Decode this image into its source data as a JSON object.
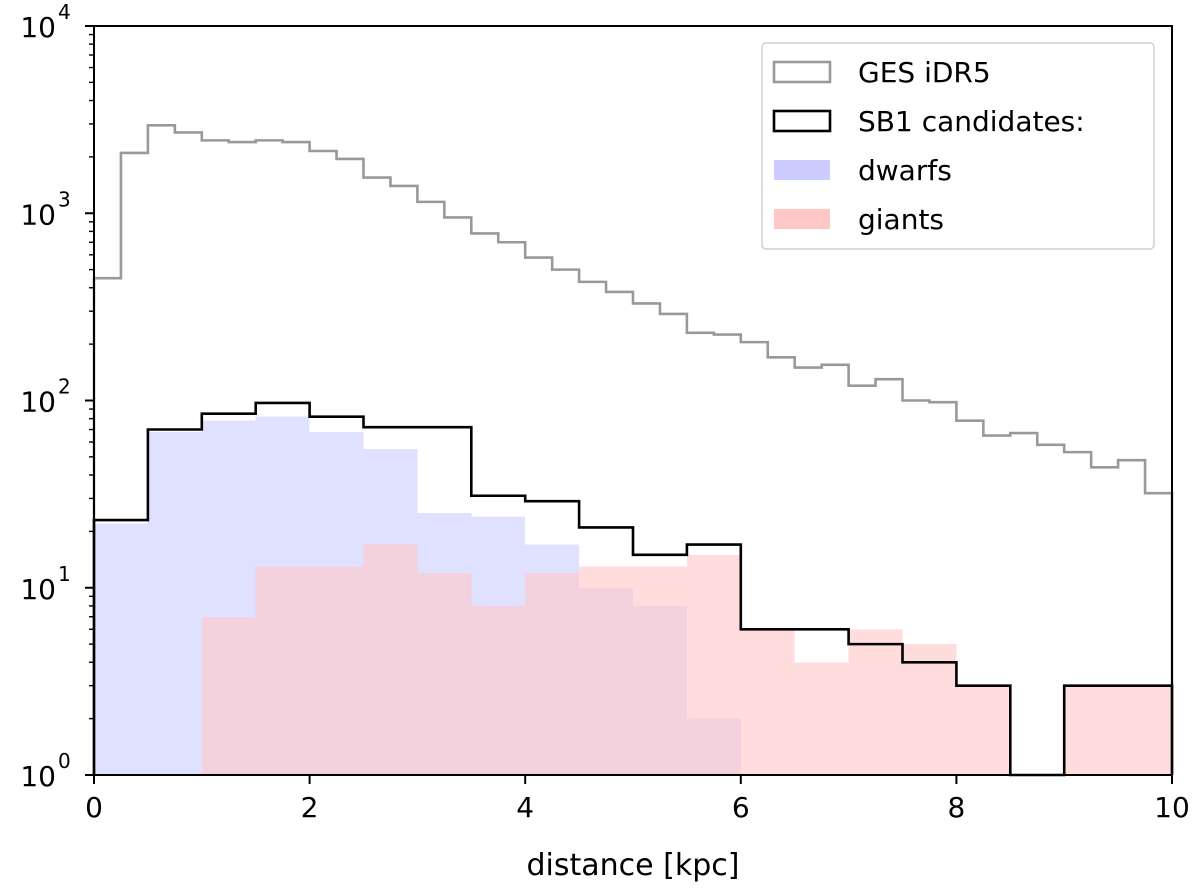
{
  "chart_data": {
    "type": "histogram",
    "xlabel": "distance [kpc]",
    "ylabel": "",
    "xlim": [
      0,
      10
    ],
    "ylim": [
      1,
      10000
    ],
    "yscale": "log",
    "x_ticks": [
      0,
      2,
      4,
      6,
      8,
      10
    ],
    "y_ticks": [
      {
        "value": 1,
        "base": "10",
        "exp": "0"
      },
      {
        "value": 10,
        "base": "10",
        "exp": "1"
      },
      {
        "value": 100,
        "base": "10",
        "exp": "2"
      },
      {
        "value": 1000,
        "base": "10",
        "exp": "3"
      },
      {
        "value": 10000,
        "base": "10",
        "exp": "4"
      }
    ],
    "legend_position": "top-right",
    "series": [
      {
        "name": "GES iDR5",
        "style": "step",
        "color": "#999999",
        "bin_edges": [
          0,
          0.25,
          0.5,
          0.75,
          1,
          1.25,
          1.5,
          1.75,
          2,
          2.25,
          2.5,
          2.75,
          3,
          3.25,
          3.5,
          3.75,
          4,
          4.25,
          4.5,
          4.75,
          5,
          5.25,
          5.5,
          5.75,
          6,
          6.25,
          6.5,
          6.75,
          7,
          7.25,
          7.5,
          7.75,
          8,
          8.25,
          8.5,
          8.75,
          9,
          9.25,
          9.5,
          9.75,
          10
        ],
        "values": [
          450,
          2100,
          2950,
          2700,
          2450,
          2400,
          2450,
          2400,
          2150,
          1950,
          1550,
          1400,
          1150,
          950,
          780,
          700,
          580,
          500,
          430,
          380,
          330,
          290,
          230,
          225,
          205,
          170,
          150,
          155,
          120,
          130,
          100,
          98,
          78,
          65,
          67,
          58,
          53,
          44,
          48,
          32
        ]
      },
      {
        "name": "SB1 candidates:",
        "style": "step",
        "color": "#000000",
        "bin_edges": [
          0,
          0.5,
          1,
          1.5,
          2,
          2.5,
          3,
          3.5,
          4,
          4.5,
          5,
          5.5,
          6,
          6.5,
          7,
          7.5,
          8,
          8.5,
          9,
          9.5,
          10
        ],
        "values": [
          23,
          70,
          85,
          97,
          82,
          72,
          72,
          31,
          29,
          21,
          15,
          17,
          6,
          6,
          5,
          4,
          3,
          0,
          3,
          3
        ]
      },
      {
        "name": "dwarfs",
        "style": "filled",
        "color": "#ccccff",
        "bin_edges": [
          0,
          0.5,
          1,
          1.5,
          2,
          2.5,
          3,
          3.5,
          4,
          4.5,
          5,
          5.5,
          6,
          6.5,
          7,
          7.5,
          8,
          8.5,
          9,
          9.5,
          10
        ],
        "values": [
          22,
          68,
          78,
          82,
          68,
          55,
          25,
          24,
          17,
          10,
          8,
          2,
          0,
          0,
          0,
          0,
          0,
          0,
          0,
          0
        ]
      },
      {
        "name": "giants",
        "style": "filled",
        "color": "#ffc6c6",
        "bin_edges": [
          0,
          0.5,
          1,
          1.5,
          2,
          2.5,
          3,
          3.5,
          4,
          4.5,
          5,
          5.5,
          6,
          6.5,
          7,
          7.5,
          8,
          8.5,
          9,
          9.5,
          10
        ],
        "values": [
          0,
          0,
          7,
          13,
          13,
          17,
          12,
          8,
          12,
          13,
          13,
          15,
          6,
          4,
          6,
          5,
          3,
          0,
          3,
          3
        ]
      }
    ]
  },
  "legend": [
    {
      "label": "GES iDR5",
      "kind": "outline",
      "color": "#999999"
    },
    {
      "label": "SB1 candidates:",
      "kind": "outline",
      "color": "#000000"
    },
    {
      "label": "dwarfs",
      "kind": "fill",
      "color": "#ccccff"
    },
    {
      "label": "giants",
      "kind": "fill",
      "color": "#ffc6c6"
    }
  ]
}
